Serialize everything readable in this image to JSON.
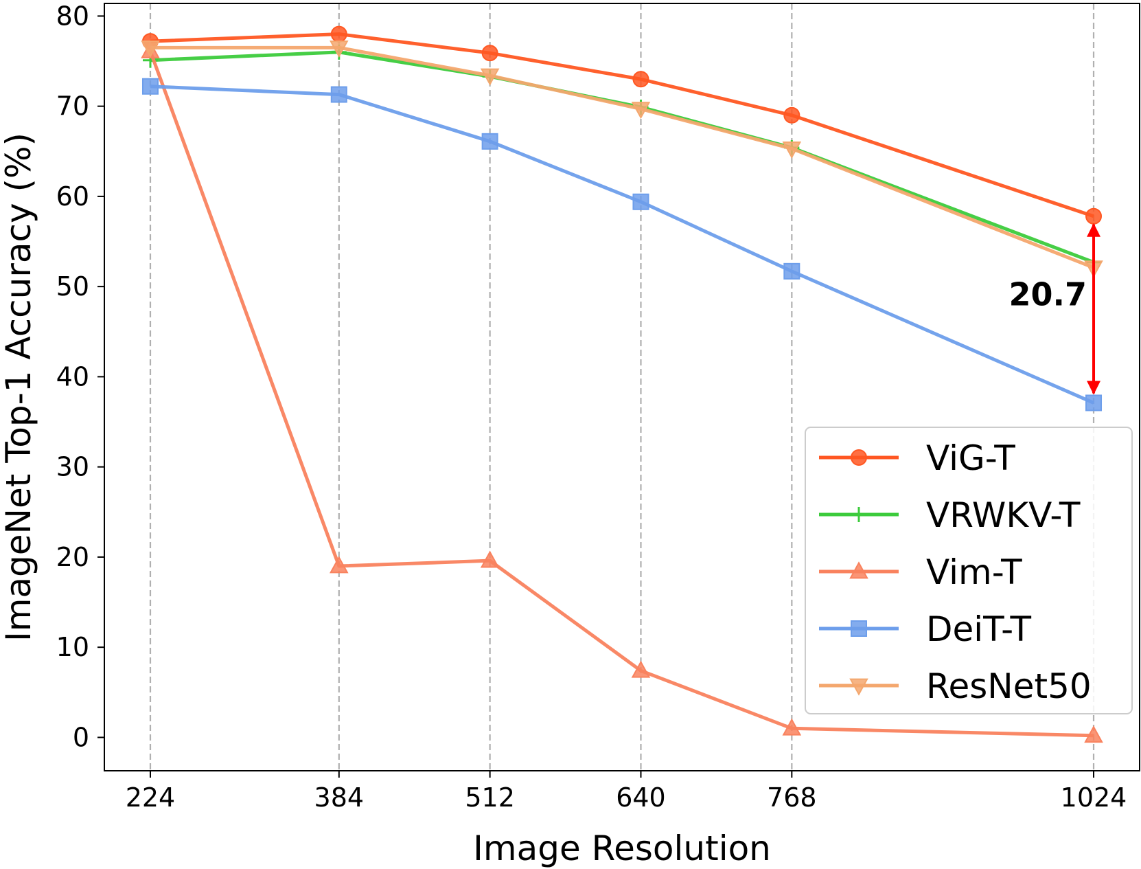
{
  "chart_data": {
    "type": "line",
    "title": "",
    "xlabel": "Image Resolution",
    "ylabel": "ImageNet Top-1 Accuracy (%)",
    "categories": [
      "224",
      "384",
      "512",
      "640",
      "768",
      "1024"
    ],
    "x": [
      224,
      384,
      512,
      640,
      768,
      1024
    ],
    "xlim": [
      185,
      1063
    ],
    "ylim": [
      -3.7,
      81.4
    ],
    "yticks": [
      0,
      10,
      20,
      30,
      40,
      50,
      60,
      70,
      80
    ],
    "ytick_labels": [
      "0",
      "10",
      "20",
      "30",
      "40",
      "50",
      "60",
      "70",
      "80"
    ],
    "grid": "vertical dashed at x ticks",
    "legend_position": "lower-right",
    "series": [
      {
        "name": "ViG-T",
        "marker": "circle",
        "color": "#FF5722",
        "values": [
          77.2,
          78.0,
          75.9,
          73.0,
          69.0,
          57.8
        ]
      },
      {
        "name": "VRWKV-T",
        "marker": "plus",
        "color": "#3CCB3C",
        "values": [
          75.1,
          76.0,
          73.3,
          69.9,
          65.4,
          52.7
        ]
      },
      {
        "name": "Vim-T",
        "marker": "triangle-up",
        "color": "#F9825E",
        "values": [
          76.1,
          19.0,
          19.6,
          7.4,
          1.0,
          0.2
        ]
      },
      {
        "name": "DeiT-T",
        "marker": "square",
        "color": "#6D9EEB",
        "values": [
          72.2,
          71.3,
          66.1,
          59.4,
          51.7,
          37.1
        ]
      },
      {
        "name": "ResNet50",
        "marker": "triangle-down",
        "color": "#F4A76E",
        "values": [
          76.5,
          76.5,
          73.4,
          69.7,
          65.3,
          52.1
        ]
      }
    ],
    "annotation": {
      "text": "20.7",
      "arrow_x": 1024,
      "arrow_from": 57.8,
      "arrow_to": 37.1,
      "color": "#FF0000"
    }
  }
}
